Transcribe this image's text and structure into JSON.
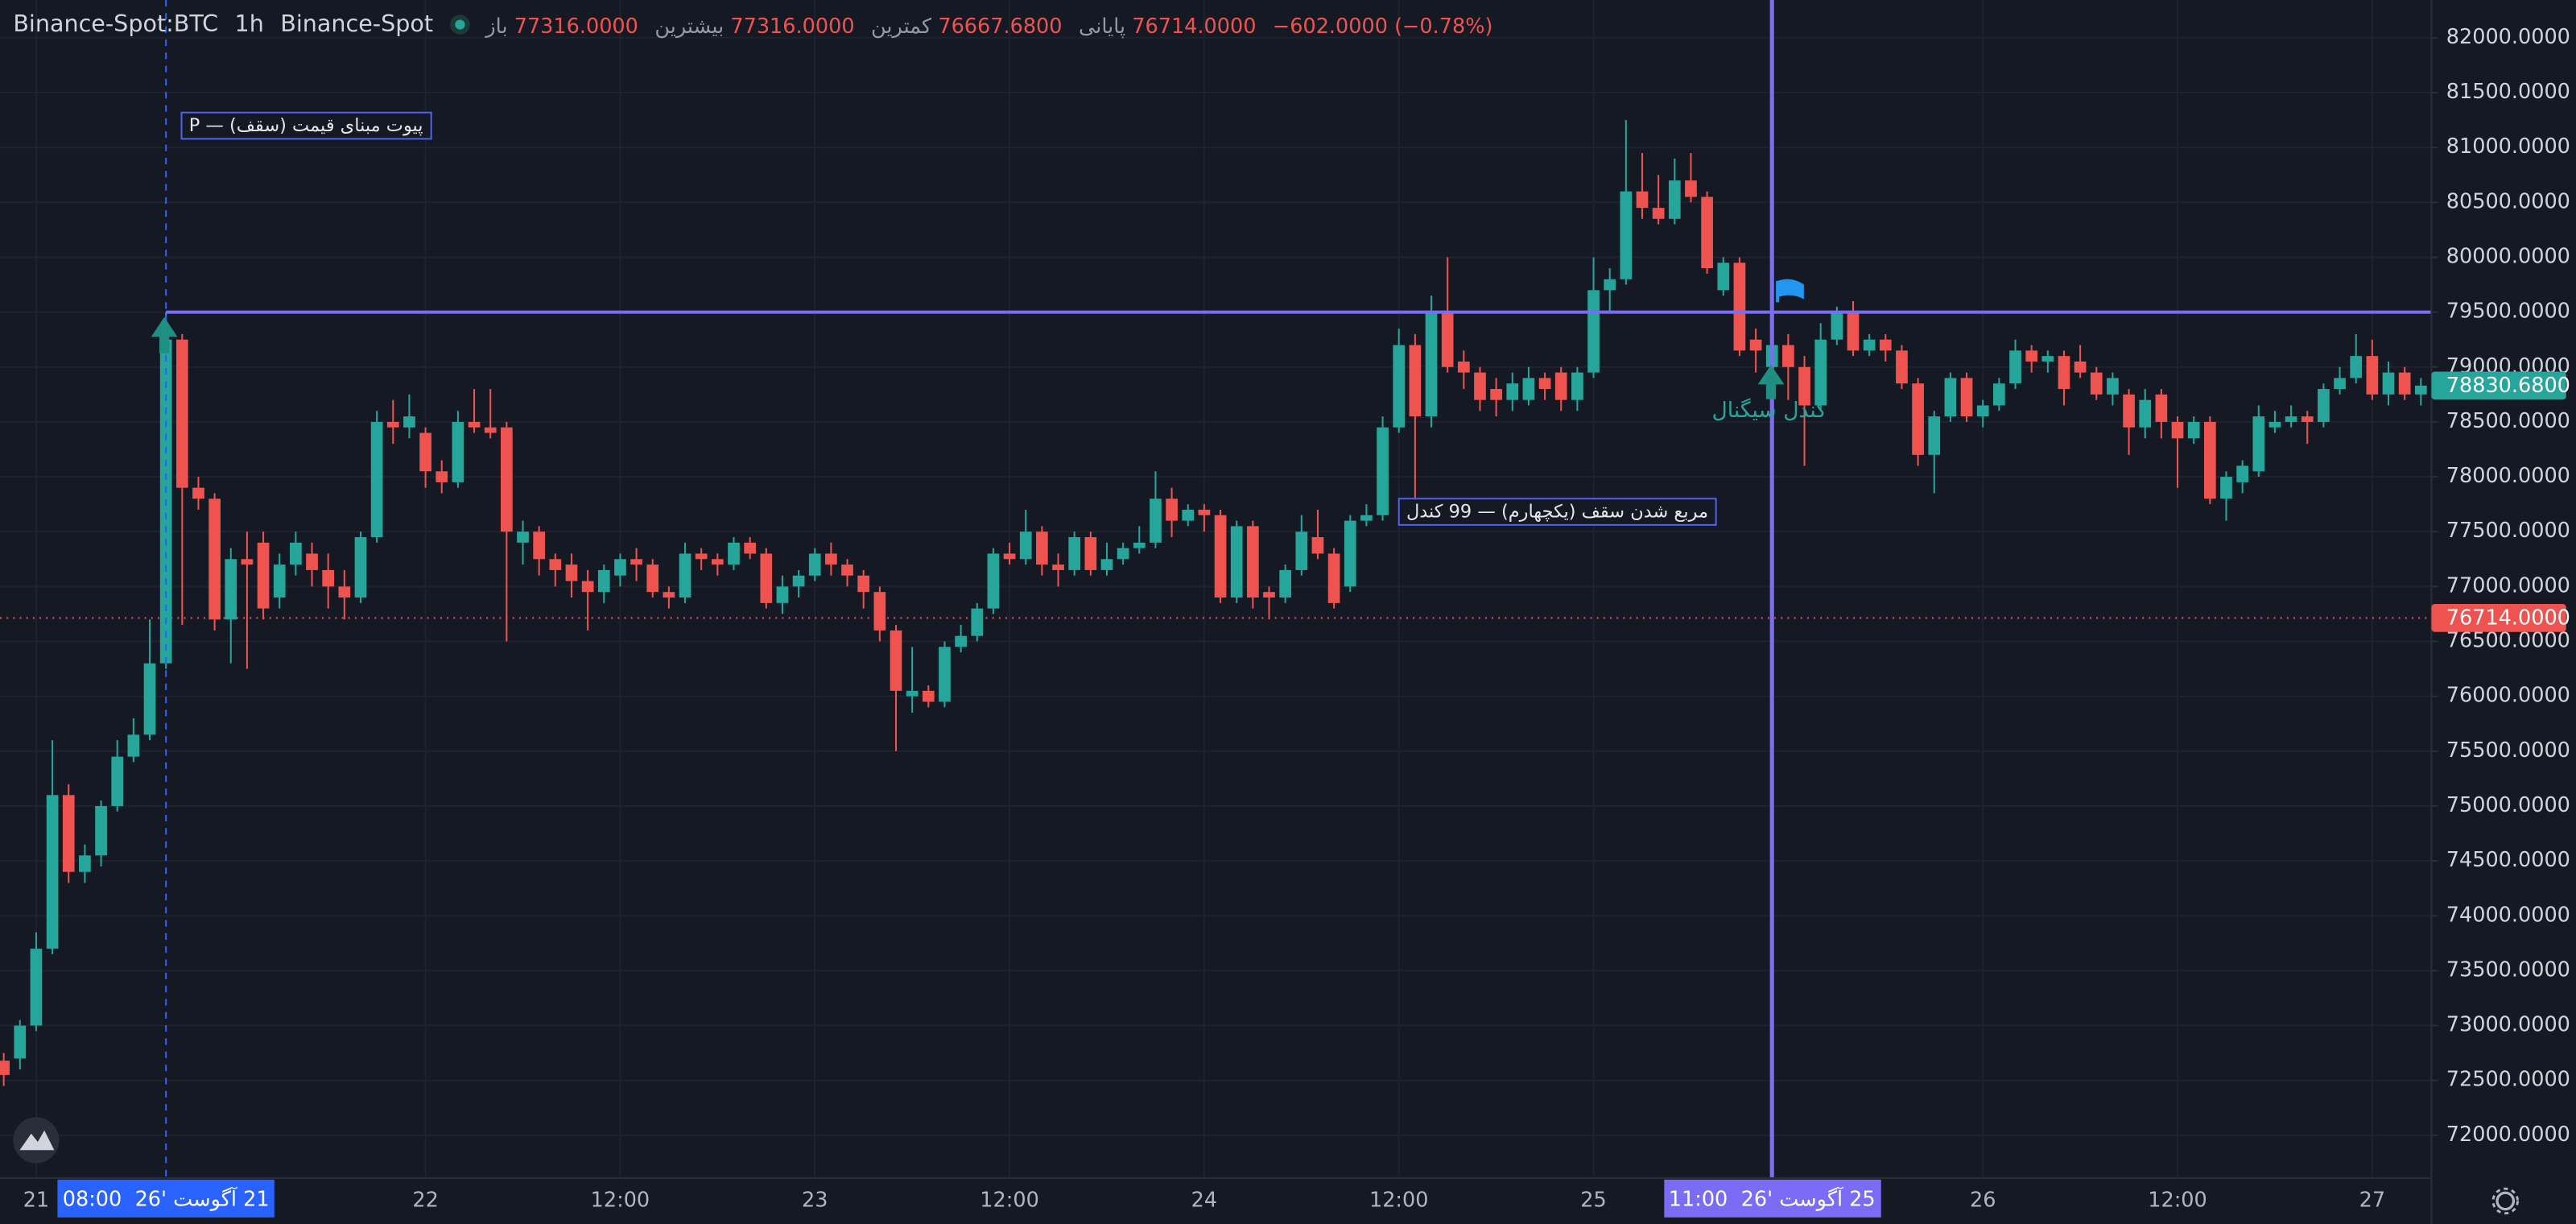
{
  "chart_data": {
    "type": "candlestick",
    "header": {
      "symbol": "Binance-Spot:BTC",
      "interval": "1h",
      "exchange": "Binance-Spot",
      "legend": [
        {
          "label": "باز",
          "value": "77316.0000"
        },
        {
          "label": "بیشترین",
          "value": "77316.0000"
        },
        {
          "label": "کمترین",
          "value": "76667.6800"
        },
        {
          "label": "پایانی",
          "value": "76714.0000"
        }
      ],
      "change": "−602.0000 (−0.78%)"
    },
    "up_color": "#26a69a",
    "down_color": "#ef5350",
    "open": [
      72680,
      72700,
      73000,
      73700,
      75100,
      74400,
      74550,
      75000,
      75450,
      75650,
      76300,
      79250,
      77900,
      77800,
      76700,
      77250,
      77400,
      76900,
      77200,
      77300,
      77150,
      77000,
      76900,
      77450,
      78500,
      78450,
      78400,
      78050,
      77950,
      78500,
      78450,
      78450,
      77400,
      77500,
      77250,
      77200,
      77050,
      76950,
      77100,
      77250,
      77200,
      76950,
      76900,
      77300,
      77250,
      77200,
      77400,
      77300,
      76850,
      77000,
      77100,
      77300,
      77200,
      77100,
      76950,
      76600,
      76000,
      76050,
      75950,
      76450,
      76550,
      76800,
      77300,
      77250,
      77500,
      77200,
      77150,
      77450,
      77150,
      77250,
      77350,
      77400,
      77800,
      77600,
      77700,
      77650,
      76900,
      77550,
      76950,
      76900,
      77150,
      77450,
      77300,
      77000,
      77600,
      77650,
      78450,
      79200,
      78550,
      79500,
      79050,
      78950,
      78800,
      78700,
      78700,
      78900,
      78950,
      78700,
      78950,
      79700,
      79800,
      80600,
      80450,
      80350,
      80700,
      80550,
      79700,
      79950,
      79250,
      79000,
      79200,
      79000,
      78650,
      79250,
      79500,
      79150,
      79250,
      79150,
      78850,
      78200,
      78550,
      78900,
      78550,
      78650,
      78850,
      79150,
      79050,
      79100,
      79050,
      78950,
      78750,
      78750,
      78450,
      78750,
      78500,
      78350,
      78500,
      77800,
      77950,
      78050,
      78450,
      78500,
      78550,
      78500,
      78800,
      78900,
      79100,
      78750,
      78950,
      78750
    ],
    "high": [
      72750,
      73050,
      73850,
      75600,
      75200,
      74650,
      75050,
      75600,
      75800,
      76700,
      79500,
      79300,
      78000,
      77850,
      77350,
      77500,
      77500,
      77300,
      77500,
      77400,
      77300,
      77150,
      77500,
      78600,
      78700,
      78750,
      78450,
      78150,
      78600,
      78800,
      78800,
      78500,
      77600,
      77550,
      77300,
      77300,
      77150,
      77200,
      77300,
      77350,
      77250,
      77000,
      77400,
      77350,
      77300,
      77450,
      77450,
      77350,
      77100,
      77150,
      77350,
      77400,
      77250,
      77150,
      77000,
      76650,
      76450,
      76100,
      76500,
      76650,
      76850,
      77350,
      77400,
      77700,
      77550,
      77300,
      77500,
      77500,
      77400,
      77400,
      77550,
      78050,
      77900,
      77750,
      77750,
      77700,
      77600,
      77600,
      77000,
      77200,
      77650,
      77700,
      77350,
      77650,
      77750,
      78550,
      79350,
      79300,
      79650,
      80000,
      79150,
      79000,
      78900,
      78950,
      79000,
      78950,
      79000,
      79000,
      80000,
      79900,
      81250,
      80950,
      80750,
      80900,
      80950,
      80600,
      80000,
      80000,
      79350,
      79300,
      79300,
      79100,
      79400,
      79550,
      79600,
      79300,
      79300,
      79200,
      78900,
      78600,
      78950,
      78950,
      78700,
      78900,
      79250,
      79200,
      79150,
      79150,
      79200,
      79000,
      78950,
      78800,
      78800,
      78800,
      78550,
      78550,
      78550,
      78050,
      78150,
      78650,
      78600,
      78650,
      78600,
      78850,
      79000,
      79300,
      79250,
      79050,
      79000,
      78900
    ],
    "low": [
      72450,
      72600,
      72950,
      73650,
      74300,
      74300,
      74450,
      74950,
      75400,
      75600,
      76250,
      76650,
      77700,
      76600,
      76300,
      76250,
      76700,
      76800,
      77100,
      77000,
      76800,
      76700,
      76850,
      77400,
      78300,
      78350,
      77900,
      77850,
      77900,
      78400,
      78350,
      76500,
      77200,
      77100,
      77000,
      76900,
      76600,
      76850,
      77000,
      77050,
      76900,
      76800,
      76850,
      77150,
      77100,
      77150,
      77250,
      76800,
      76750,
      76900,
      77050,
      77100,
      77000,
      76800,
      76500,
      75500,
      75850,
      75900,
      75900,
      76400,
      76500,
      76750,
      77200,
      77200,
      77100,
      77000,
      77100,
      77100,
      77100,
      77200,
      77300,
      77350,
      77450,
      77550,
      77500,
      76850,
      76850,
      76800,
      76700,
      76850,
      77100,
      77250,
      76800,
      76950,
      77550,
      77600,
      78400,
      77800,
      78450,
      78950,
      78800,
      78600,
      78550,
      78600,
      78650,
      78700,
      78600,
      78600,
      78900,
      79500,
      79750,
      80350,
      80300,
      80300,
      80500,
      79850,
      79650,
      79100,
      78950,
      78850,
      78700,
      78100,
      78600,
      79200,
      79100,
      79100,
      79050,
      78800,
      78100,
      77850,
      78500,
      78500,
      78450,
      78600,
      78800,
      78950,
      78950,
      78650,
      78900,
      78700,
      78650,
      78200,
      78350,
      78350,
      77900,
      78300,
      77750,
      77600,
      77850,
      78000,
      78400,
      78450,
      78300,
      78450,
      78750,
      78850,
      78700,
      78650,
      78700,
      78650
    ],
    "close": [
      72550,
      73000,
      73700,
      75100,
      74400,
      74550,
      75000,
      75450,
      75650,
      76300,
      79250,
      77900,
      77800,
      76700,
      77250,
      77200,
      76800,
      77200,
      77400,
      77150,
      77000,
      76900,
      77450,
      78500,
      78450,
      78550,
      78050,
      77950,
      78500,
      78450,
      78400,
      77500,
      77500,
      77250,
      77150,
      77050,
      76950,
      77150,
      77250,
      77200,
      76950,
      76900,
      77300,
      77250,
      77200,
      77400,
      77300,
      76850,
      77000,
      77100,
      77300,
      77200,
      77100,
      76950,
      76600,
      76050,
      76050,
      75950,
      76450,
      76550,
      76800,
      77300,
      77250,
      77500,
      77200,
      77150,
      77450,
      77150,
      77250,
      77350,
      77400,
      77800,
      77600,
      77700,
      77650,
      76900,
      77550,
      76900,
      76900,
      77150,
      77500,
      77300,
      76850,
      77600,
      77650,
      78450,
      79200,
      78550,
      79500,
      79000,
      78950,
      78700,
      78700,
      78850,
      78900,
      78800,
      78700,
      78950,
      79700,
      79800,
      80600,
      80450,
      80350,
      80700,
      80550,
      79900,
      79950,
      79150,
      79150,
      79200,
      79000,
      78650,
      79250,
      79500,
      79150,
      79250,
      79150,
      78850,
      78200,
      78550,
      78900,
      78550,
      78650,
      78850,
      79150,
      79050,
      79100,
      78800,
      78950,
      78750,
      78900,
      78450,
      78700,
      78500,
      78350,
      78500,
      77800,
      78000,
      78100,
      78550,
      78500,
      78550,
      78500,
      78800,
      78900,
      79100,
      78750,
      78950,
      78750,
      78830.68
    ],
    "xlim": [
      -0.23,
      149.65
    ],
    "ylim": [
      71611,
      82344
    ],
    "xticks": [
      {
        "value": 2,
        "label": "21"
      },
      {
        "value": 26,
        "label": "22"
      },
      {
        "value": 38,
        "label": "12:00"
      },
      {
        "value": 50,
        "label": "23"
      },
      {
        "value": 62,
        "label": "12:00"
      },
      {
        "value": 74,
        "label": "24"
      },
      {
        "value": 86,
        "label": "12:00"
      },
      {
        "value": 98,
        "label": "25"
      },
      {
        "value": 122,
        "label": "26"
      },
      {
        "value": 134,
        "label": "12:00"
      },
      {
        "value": 146,
        "label": "27"
      }
    ],
    "yticks": [
      {
        "value": 72000,
        "label": "72000.0000"
      },
      {
        "value": 72500,
        "label": "72500.0000"
      },
      {
        "value": 73000,
        "label": "73000.0000"
      },
      {
        "value": 73500,
        "label": "73500.0000"
      },
      {
        "value": 74000,
        "label": "74000.0000"
      },
      {
        "value": 74500,
        "label": "74500.0000"
      },
      {
        "value": 75000,
        "label": "75000.0000"
      },
      {
        "value": 75500,
        "label": "75500.0000"
      },
      {
        "value": 76000,
        "label": "76000.0000"
      },
      {
        "value": 76500,
        "label": "76500.0000"
      },
      {
        "value": 77000,
        "label": "77000.0000"
      },
      {
        "value": 77500,
        "label": "77500.0000"
      },
      {
        "value": 78000,
        "label": "78000.0000"
      },
      {
        "value": 78500,
        "label": "78500.0000"
      },
      {
        "value": 79000,
        "label": "79000.0000"
      },
      {
        "value": 79500,
        "label": "79500.0000"
      },
      {
        "value": 80000,
        "label": "80000.0000"
      },
      {
        "value": 80500,
        "label": "80500.0000"
      },
      {
        "value": 81000,
        "label": "81000.0000"
      },
      {
        "value": 81500,
        "label": "81500.0000"
      },
      {
        "value": 82000,
        "label": "82000.0000"
      }
    ],
    "grid": true,
    "pivot_line": {
      "value": 79500,
      "from_index": 10,
      "color": "#7b6cf6"
    },
    "price_tags": [
      {
        "value": 78830.68,
        "label": "78830.6800",
        "color": "#26a69a",
        "line": false
      },
      {
        "value": 76714,
        "label": "76714.0000",
        "color": "#ef5350",
        "line": true
      }
    ],
    "crosshairs": [
      {
        "index": 10,
        "time": "08:00",
        "date": "21 آگوست '26",
        "color": "#2962ff",
        "dashed": true
      },
      {
        "index": 109,
        "time": "11:00",
        "date": "25 آگوست '26",
        "color": "#7b6cf6",
        "dashed": false
      }
    ],
    "annotations": [
      "پیوت مبنای قیمت (سقف) — P",
      "مربع شدن سقف (یکچهارم) — 99 کندل",
      "کندل سیگنال"
    ]
  }
}
